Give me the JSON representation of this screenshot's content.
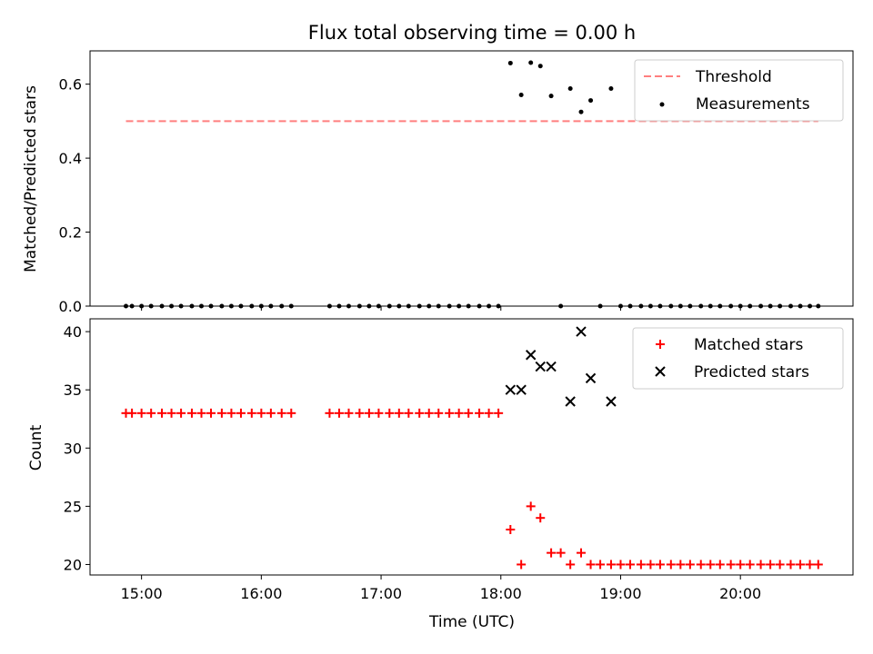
{
  "title": "Flux total observing time = 0.00 h",
  "x_axis": {
    "label": "Time (UTC)",
    "ticks": [
      {
        "value": 15,
        "label": "15:00"
      },
      {
        "value": 16,
        "label": "16:00"
      },
      {
        "value": 17,
        "label": "17:00"
      },
      {
        "value": 18,
        "label": "18:00"
      },
      {
        "value": 19,
        "label": "19:00"
      },
      {
        "value": 20,
        "label": "20:00"
      }
    ]
  },
  "colors": {
    "threshold": "#ff7f7f",
    "measurements": "#000000",
    "matched": "#ff0000",
    "predicted": "#000000"
  },
  "chart_data": [
    {
      "type": "scatter",
      "ylabel": "Matched/Predicted stars",
      "ylim": [
        0,
        0.69
      ],
      "xlim": [
        14.57,
        20.94
      ],
      "y_ticks": [
        {
          "value": 0.0,
          "label": "0.0"
        },
        {
          "value": 0.2,
          "label": "0.2"
        },
        {
          "value": 0.4,
          "label": "0.4"
        },
        {
          "value": 0.6,
          "label": "0.6"
        }
      ],
      "legend_position": "top-right",
      "threshold": {
        "name": "Threshold",
        "y": 0.5,
        "x_start": 14.87,
        "x_end": 20.65
      },
      "series": [
        {
          "name": "Measurements",
          "x": [
            14.87,
            14.92,
            15.0,
            15.08,
            15.17,
            15.25,
            15.33,
            15.42,
            15.5,
            15.58,
            15.67,
            15.75,
            15.83,
            15.92,
            16.0,
            16.08,
            16.17,
            16.25,
            16.57,
            16.65,
            16.73,
            16.82,
            16.9,
            16.98,
            17.07,
            17.15,
            17.23,
            17.32,
            17.4,
            17.48,
            17.57,
            17.65,
            17.73,
            17.82,
            17.9,
            17.98,
            18.08,
            18.17,
            18.25,
            18.33,
            18.42,
            18.5,
            18.58,
            18.67,
            18.75,
            18.83,
            18.92,
            19.0,
            19.08,
            19.17,
            19.25,
            19.33,
            19.42,
            19.5,
            19.58,
            19.67,
            19.75,
            19.83,
            19.92,
            20.0,
            20.08,
            20.17,
            20.25,
            20.33,
            20.42,
            20.5,
            20.58,
            20.65
          ],
          "y": [
            0,
            0,
            0,
            0,
            0,
            0,
            0,
            0,
            0,
            0,
            0,
            0,
            0,
            0,
            0,
            0,
            0,
            0,
            0,
            0,
            0,
            0,
            0,
            0,
            0,
            0,
            0,
            0,
            0,
            0,
            0,
            0,
            0,
            0,
            0,
            0,
            0.657,
            0.571,
            0.658,
            0.649,
            0.568,
            0,
            0.588,
            0.525,
            0.556,
            0,
            0.588,
            0,
            0,
            0,
            0,
            0,
            0,
            0,
            0,
            0,
            0,
            0,
            0,
            0,
            0,
            0,
            0,
            0,
            0,
            0,
            0,
            0
          ]
        }
      ]
    },
    {
      "type": "scatter",
      "ylabel": "Count",
      "ylim": [
        19.1,
        41.1
      ],
      "xlim": [
        14.57,
        20.94
      ],
      "y_ticks": [
        {
          "value": 20,
          "label": "20"
        },
        {
          "value": 25,
          "label": "25"
        },
        {
          "value": 30,
          "label": "30"
        },
        {
          "value": 35,
          "label": "35"
        },
        {
          "value": 40,
          "label": "40"
        }
      ],
      "legend_position": "top-right",
      "series": [
        {
          "name": "Matched stars",
          "marker": "plus",
          "x": [
            14.87,
            14.92,
            15.0,
            15.08,
            15.17,
            15.25,
            15.33,
            15.42,
            15.5,
            15.58,
            15.67,
            15.75,
            15.83,
            15.92,
            16.0,
            16.08,
            16.17,
            16.25,
            16.57,
            16.65,
            16.73,
            16.82,
            16.9,
            16.98,
            17.07,
            17.15,
            17.23,
            17.32,
            17.4,
            17.48,
            17.57,
            17.65,
            17.73,
            17.82,
            17.9,
            17.98,
            18.08,
            18.17,
            18.25,
            18.33,
            18.42,
            18.5,
            18.58,
            18.67,
            18.75,
            18.83,
            18.92,
            19.0,
            19.08,
            19.17,
            19.25,
            19.33,
            19.42,
            19.5,
            19.58,
            19.67,
            19.75,
            19.83,
            19.92,
            20.0,
            20.08,
            20.17,
            20.25,
            20.33,
            20.42,
            20.5,
            20.58,
            20.65
          ],
          "y": [
            33,
            33,
            33,
            33,
            33,
            33,
            33,
            33,
            33,
            33,
            33,
            33,
            33,
            33,
            33,
            33,
            33,
            33,
            33,
            33,
            33,
            33,
            33,
            33,
            33,
            33,
            33,
            33,
            33,
            33,
            33,
            33,
            33,
            33,
            33,
            33,
            23,
            20,
            25,
            24,
            21,
            21,
            20,
            21,
            20,
            20,
            20,
            20,
            20,
            20,
            20,
            20,
            20,
            20,
            20,
            20,
            20,
            20,
            20,
            20,
            20,
            20,
            20,
            20,
            20,
            20,
            20,
            20
          ]
        },
        {
          "name": "Predicted stars",
          "marker": "x",
          "x": [
            18.08,
            18.17,
            18.25,
            18.33,
            18.42,
            18.58,
            18.67,
            18.75,
            18.92
          ],
          "y": [
            35,
            35,
            38,
            37,
            37,
            34,
            40,
            36,
            34
          ]
        }
      ]
    }
  ]
}
